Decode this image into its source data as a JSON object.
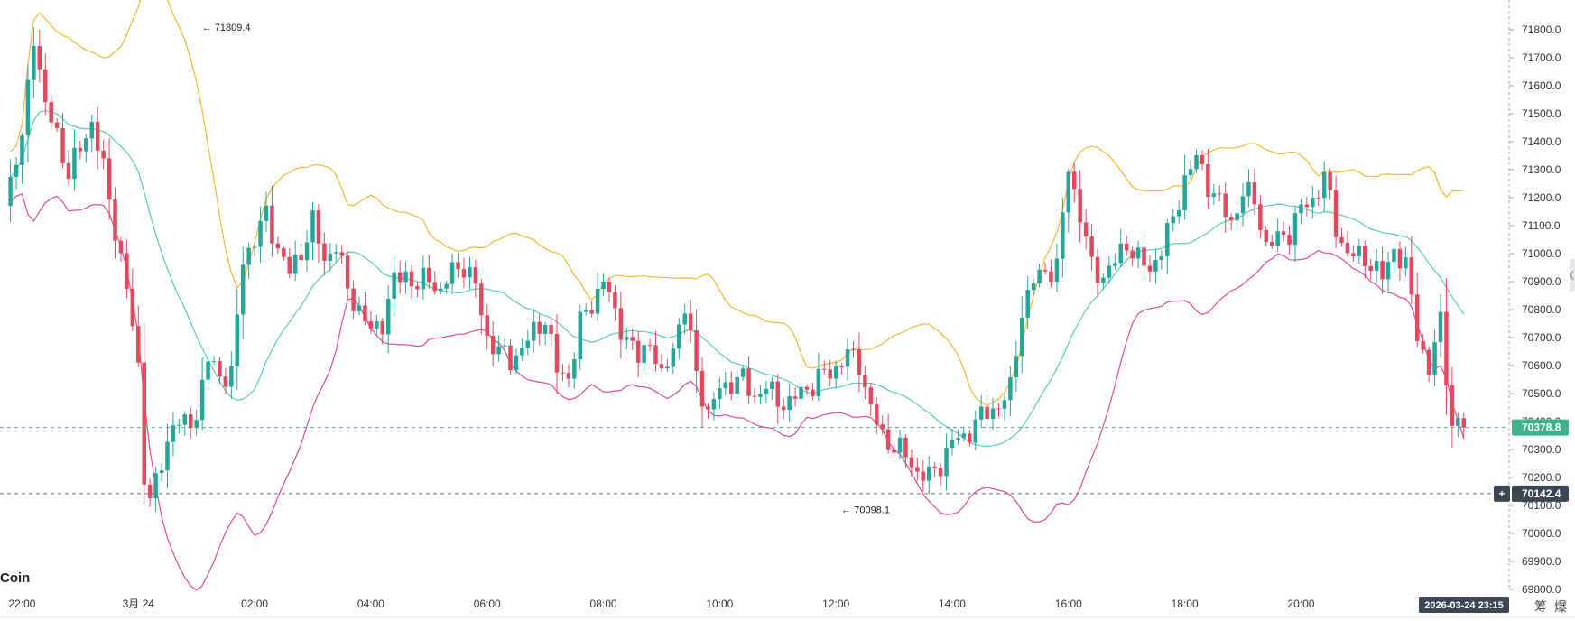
{
  "watermark": "Coin",
  "annotations": {
    "high": {
      "label": "71809.4",
      "value": 71809.4,
      "x": 30
    },
    "low": {
      "label": "70098.1",
      "value": 70098.1,
      "x": 140
    }
  },
  "price_tags": {
    "last": {
      "label": "70378.8",
      "value": 70378.8,
      "color": "#3cb38a"
    },
    "crosshair": {
      "label": "70142.4",
      "value": 70142.4,
      "color": "#3c4654"
    }
  },
  "time_tag": "2026-03-24 23:15",
  "bottom_tabs": [
    "筹",
    "爆"
  ],
  "colors": {
    "up": "#26a69a",
    "down": "#e2495f",
    "upper_band": "#f2b830",
    "middle_band": "#56cdb8",
    "lower_band": "#dc4a98"
  },
  "chart_data": {
    "type": "candlestick",
    "indicator": "Bollinger Bands",
    "y_ticks": [
      "71800.0",
      "71700.0",
      "71600.0",
      "71500.0",
      "71400.0",
      "71300.0",
      "71200.0",
      "71100.0",
      "71000.0",
      "70900.0",
      "70800.0",
      "70700.0",
      "70600.0",
      "70500.0",
      "70400.0",
      "70300.0",
      "70200.0",
      "70100.0",
      "70000.0",
      "69900.0",
      "69800.0"
    ],
    "ylim": [
      69780,
      71860
    ],
    "x_ticks": [
      {
        "label": "22:00",
        "x": 0
      },
      {
        "label": "3月 24",
        "x": 20
      },
      {
        "label": "02:00",
        "x": 40
      },
      {
        "label": "04:00",
        "x": 60
      },
      {
        "label": "06:00",
        "x": 80
      },
      {
        "label": "08:00",
        "x": 100
      },
      {
        "label": "10:00",
        "x": 120
      },
      {
        "label": "12:00",
        "x": 140
      },
      {
        "label": "14:00",
        "x": 160
      },
      {
        "label": "16:00",
        "x": 180
      },
      {
        "label": "18:00",
        "x": 200
      },
      {
        "label": "20:00",
        "x": 220
      }
    ],
    "xlim": [
      -3.8,
      255.8
    ],
    "close_anchors": [
      [
        -3,
        71200
      ],
      [
        0,
        71400
      ],
      [
        2,
        71790
      ],
      [
        4,
        71520
      ],
      [
        6,
        71430
      ],
      [
        8,
        71280
      ],
      [
        10,
        71380
      ],
      [
        12,
        71470
      ],
      [
        14,
        71300
      ],
      [
        16,
        71090
      ],
      [
        18,
        70870
      ],
      [
        20,
        70600
      ],
      [
        21,
        70220
      ],
      [
        22,
        70110
      ],
      [
        24,
        70250
      ],
      [
        26,
        70400
      ],
      [
        28,
        70380
      ],
      [
        30,
        70430
      ],
      [
        32,
        70620
      ],
      [
        34,
        70570
      ],
      [
        36,
        70560
      ],
      [
        38,
        70980
      ],
      [
        40,
        71050
      ],
      [
        42,
        71140
      ],
      [
        44,
        71020
      ],
      [
        46,
        70930
      ],
      [
        48,
        71010
      ],
      [
        50,
        71110
      ],
      [
        52,
        70980
      ],
      [
        54,
        71030
      ],
      [
        56,
        70870
      ],
      [
        58,
        70800
      ],
      [
        60,
        70720
      ],
      [
        62,
        70760
      ],
      [
        64,
        70900
      ],
      [
        66,
        70930
      ],
      [
        68,
        70880
      ],
      [
        70,
        70920
      ],
      [
        72,
        70860
      ],
      [
        74,
        70940
      ],
      [
        76,
        70960
      ],
      [
        78,
        70880
      ],
      [
        80,
        70700
      ],
      [
        82,
        70650
      ],
      [
        84,
        70620
      ],
      [
        86,
        70660
      ],
      [
        88,
        70720
      ],
      [
        90,
        70770
      ],
      [
        92,
        70580
      ],
      [
        94,
        70560
      ],
      [
        96,
        70750
      ],
      [
        98,
        70820
      ],
      [
        100,
        70910
      ],
      [
        102,
        70780
      ],
      [
        104,
        70700
      ],
      [
        106,
        70620
      ],
      [
        108,
        70700
      ],
      [
        110,
        70540
      ],
      [
        112,
        70680
      ],
      [
        114,
        70800
      ],
      [
        116,
        70580
      ],
      [
        118,
        70420
      ],
      [
        120,
        70520
      ],
      [
        122,
        70540
      ],
      [
        124,
        70550
      ],
      [
        126,
        70490
      ],
      [
        128,
        70520
      ],
      [
        130,
        70480
      ],
      [
        132,
        70460
      ],
      [
        134,
        70510
      ],
      [
        136,
        70530
      ],
      [
        138,
        70570
      ],
      [
        140,
        70590
      ],
      [
        142,
        70640
      ],
      [
        144,
        70610
      ],
      [
        146,
        70440
      ],
      [
        148,
        70350
      ],
      [
        150,
        70310
      ],
      [
        152,
        70280
      ],
      [
        154,
        70220
      ],
      [
        156,
        70200
      ],
      [
        158,
        70250
      ],
      [
        160,
        70330
      ],
      [
        162,
        70340
      ],
      [
        164,
        70400
      ],
      [
        166,
        70430
      ],
      [
        168,
        70460
      ],
      [
        170,
        70510
      ],
      [
        172,
        70800
      ],
      [
        174,
        70900
      ],
      [
        176,
        70940
      ],
      [
        178,
        70950
      ],
      [
        180,
        71310
      ],
      [
        182,
        71140
      ],
      [
        184,
        70950
      ],
      [
        186,
        70920
      ],
      [
        188,
        70970
      ],
      [
        190,
        71040
      ],
      [
        192,
        70980
      ],
      [
        194,
        70940
      ],
      [
        196,
        71020
      ],
      [
        198,
        71120
      ],
      [
        200,
        71270
      ],
      [
        202,
        71340
      ],
      [
        204,
        71250
      ],
      [
        206,
        71180
      ],
      [
        208,
        71110
      ],
      [
        210,
        71220
      ],
      [
        212,
        71190
      ],
      [
        214,
        71030
      ],
      [
        216,
        71050
      ],
      [
        218,
        71080
      ],
      [
        220,
        71160
      ],
      [
        222,
        71190
      ],
      [
        224,
        71280
      ],
      [
        226,
        71090
      ],
      [
        228,
        71000
      ],
      [
        230,
        70990
      ],
      [
        232,
        70970
      ],
      [
        234,
        70910
      ],
      [
        236,
        71020
      ],
      [
        238,
        70950
      ],
      [
        240,
        70720
      ],
      [
        242,
        70580
      ],
      [
        244,
        70760
      ],
      [
        246,
        70390
      ],
      [
        248,
        70379
      ]
    ],
    "last_close": 70378.8
  }
}
